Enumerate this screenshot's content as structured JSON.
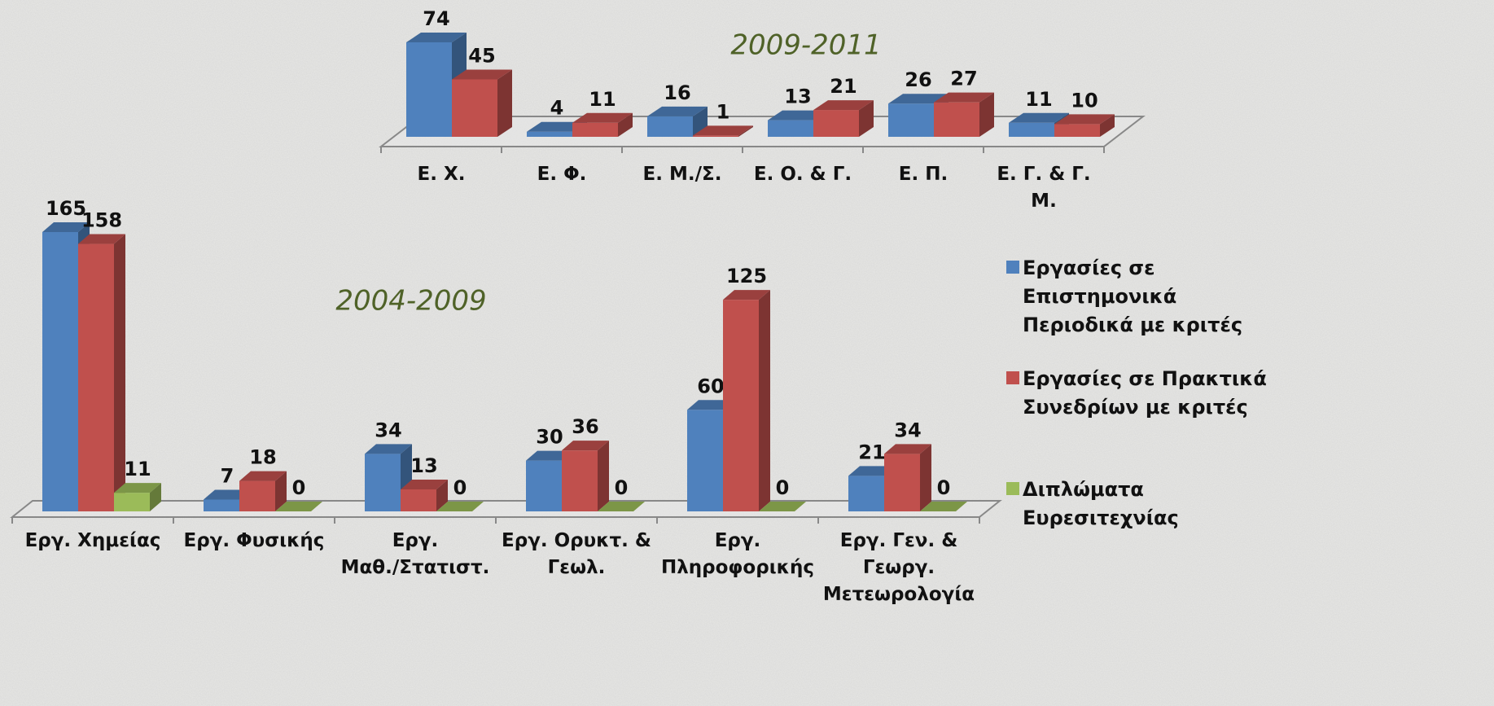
{
  "chart_data": [
    {
      "type": "bar3d",
      "title": "2009-2011",
      "categories": [
        "Ε. Χ.",
        "Ε. Φ.",
        "Ε. Μ./Σ.",
        "Ε. Ο. & Γ.",
        "Ε. Π.",
        "Ε. Γ. & Γ.\nΜ."
      ],
      "series": [
        {
          "color": "#4f81bd",
          "values": [
            74,
            4,
            16,
            13,
            26,
            11
          ]
        },
        {
          "color": "#c0504d",
          "values": [
            45,
            11,
            1,
            21,
            27,
            10
          ]
        }
      ]
    },
    {
      "type": "bar3d",
      "title": "2004-2009",
      "categories": [
        "Εργ. Χημείας",
        "Εργ. Φυσικής",
        "Εργ.\nΜαθ./Στατιστ.",
        "Εργ. Ορυκτ. &\nΓεωλ.",
        "Εργ.\nΠληροφορικής",
        "Εργ. Γεν. &\nΓεωργ.\nΜετεωρολογία"
      ],
      "series": [
        {
          "name": "Εργασίες σε Επιστημονικά Περιοδικά με κριτές",
          "color": "#4f81bd",
          "values": [
            165,
            7,
            34,
            30,
            60,
            21
          ]
        },
        {
          "name": "Εργασίες σε Πρακτικά Συνεδρίων με κριτές",
          "color": "#c0504d",
          "values": [
            158,
            18,
            13,
            36,
            125,
            34
          ]
        },
        {
          "name": "Διπλώματα Ευρεσιτεχνίας",
          "color": "#9bbb59",
          "values": [
            11,
            0,
            0,
            0,
            0,
            0
          ]
        }
      ]
    }
  ]
}
